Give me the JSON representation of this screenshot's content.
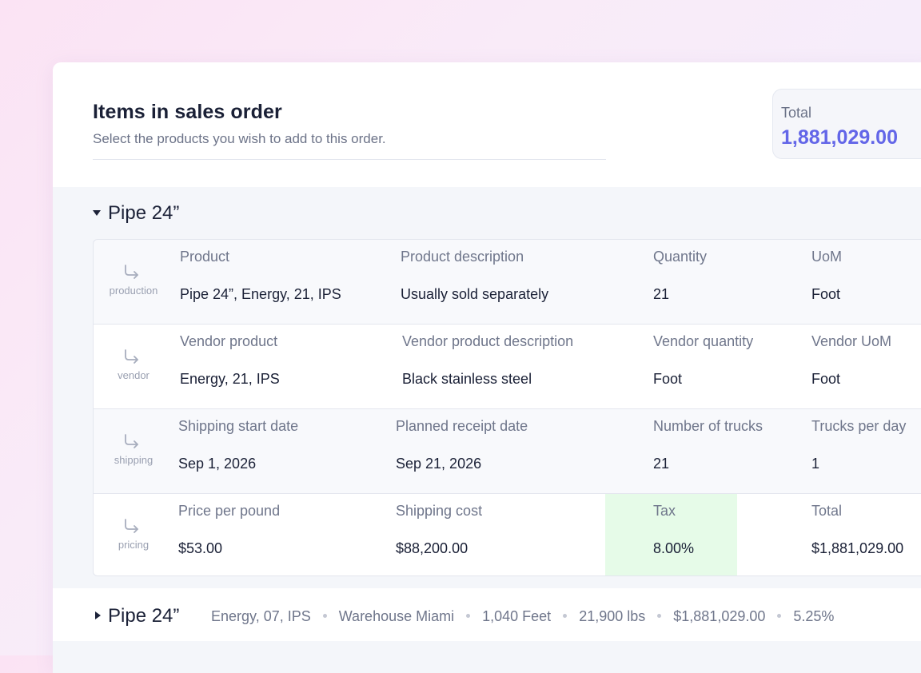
{
  "header": {
    "title": "Items in sales order",
    "subtitle": "Select the products you wish to add to this order."
  },
  "total": {
    "label": "Total",
    "value": "1,881,029.00",
    "accent_color": "#6366e8"
  },
  "groups": [
    {
      "name": "Pipe 24”",
      "expanded": true,
      "rows": [
        {
          "tag": "production",
          "icon": "arrow-turn-down-right-icon",
          "fields": [
            {
              "label": "Product",
              "value": "Pipe 24”, Energy, 21, IPS"
            },
            {
              "label": "Product description",
              "value": "Usually sold separately"
            },
            {
              "label": "Quantity",
              "value": "21"
            },
            {
              "label": "UoM",
              "value": "Foot"
            }
          ]
        },
        {
          "tag": "vendor",
          "icon": "arrow-turn-down-right-icon",
          "fields": [
            {
              "label": "Vendor product",
              "value": "Energy, 21, IPS"
            },
            {
              "label": "Vendor product description",
              "value": "Black stainless steel"
            },
            {
              "label": "Vendor quantity",
              "value": "Foot"
            },
            {
              "label": "Vendor UoM",
              "value": "Foot"
            }
          ]
        },
        {
          "tag": "shipping",
          "icon": "arrow-turn-down-right-icon",
          "fields": [
            {
              "label": "Shipping start date",
              "value": "Sep 1, 2026"
            },
            {
              "label": "Planned receipt date",
              "value": "Sep 21, 2026"
            },
            {
              "label": "Number of trucks",
              "value": "21"
            },
            {
              "label": "Trucks per day",
              "value": "1"
            }
          ]
        },
        {
          "tag": "pricing",
          "icon": "arrow-turn-down-right-icon",
          "fields": [
            {
              "label": "Price per pound",
              "value": "$53.00"
            },
            {
              "label": "Shipping cost",
              "value": "$88,200.00"
            },
            {
              "label": "Tax",
              "value": "8.00%",
              "highlight_color": "#e6fbe8"
            },
            {
              "label": "Total",
              "value": "$1,881,029.00"
            }
          ]
        }
      ]
    },
    {
      "name": "Pipe 24”",
      "expanded": false,
      "summary": [
        "Energy, 07, IPS",
        "Warehouse Miami",
        "1,040 Feet",
        "21,900 lbs",
        "$1,881,029.00",
        "5.25%"
      ]
    }
  ]
}
